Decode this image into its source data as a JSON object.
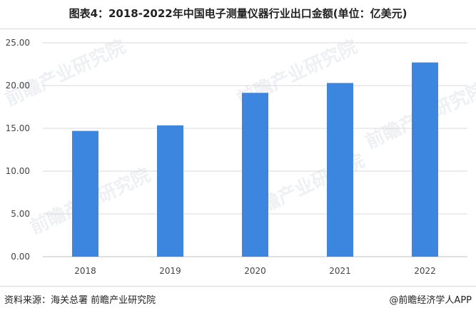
{
  "title": "图表4：2018-2022年中国电子测量仪器行业出口金额(单位：亿美元)",
  "footer": {
    "source": "资料来源：海关总署 前瞻产业研究院",
    "brand": "@前瞻经济学人APP"
  },
  "watermark": "前瞻产业研究院",
  "colors": {
    "bar": "#3d86e0",
    "grid": "#d9d9d9",
    "axis": "#bfbfbf",
    "text": "#444444"
  },
  "chart_data": {
    "type": "bar",
    "categories": [
      "2018",
      "2019",
      "2020",
      "2021",
      "2022"
    ],
    "values": [
      14.7,
      15.35,
      19.15,
      20.3,
      22.7
    ],
    "ylim": [
      0,
      25
    ],
    "yticks": [
      "0.00",
      "5.00",
      "10.00",
      "15.00",
      "20.00",
      "25.00"
    ],
    "grid": true,
    "xlabel": "",
    "ylabel": ""
  }
}
